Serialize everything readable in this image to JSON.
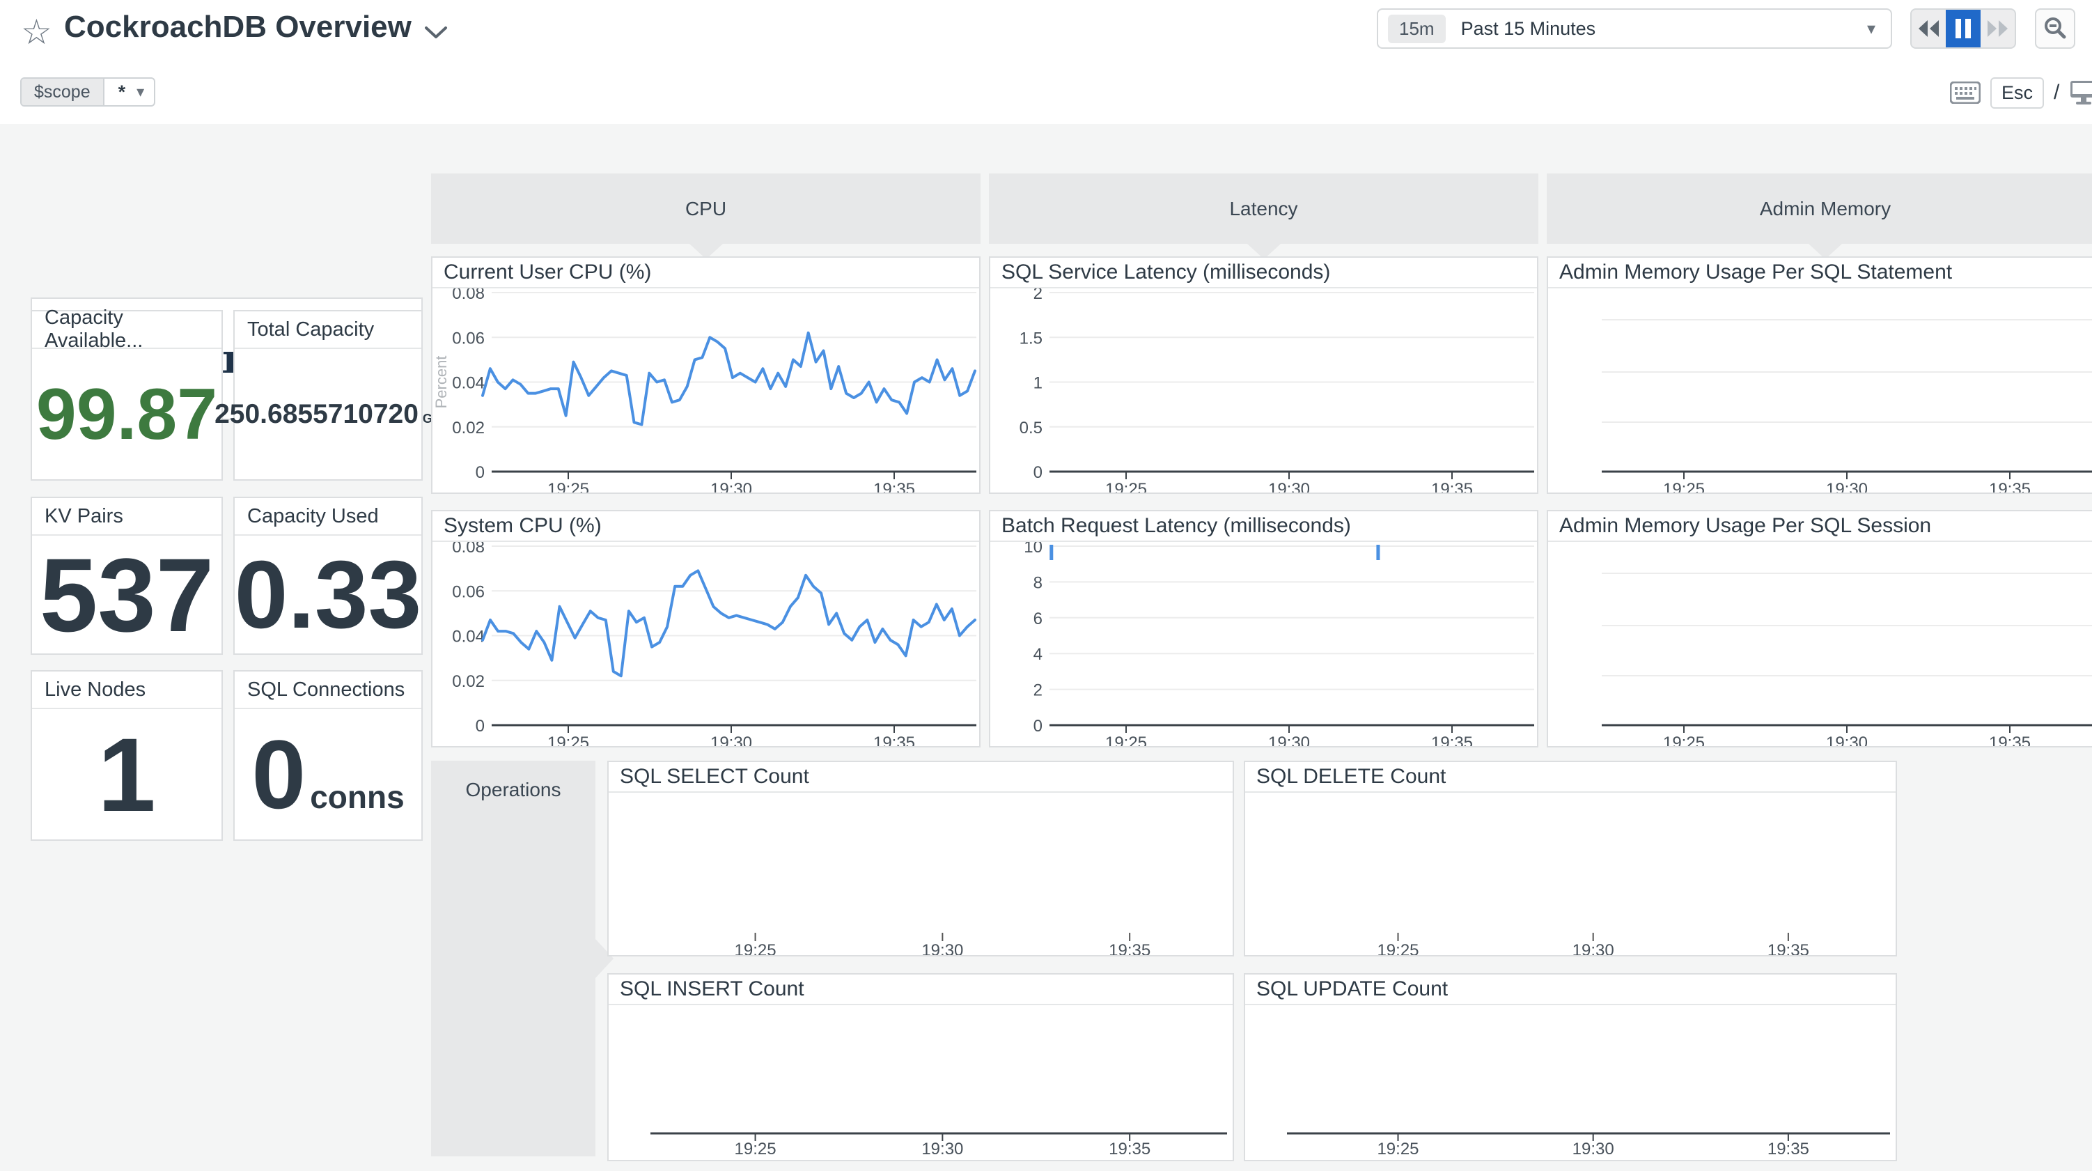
{
  "header": {
    "title": "CockroachDB Overview",
    "scope": {
      "label": "$scope",
      "value": "*"
    },
    "time_picker": {
      "badge": "15m",
      "label": "Past 15 Minutes"
    },
    "controls": {
      "esc_label": "Esc",
      "slash": "/"
    }
  },
  "logo": {
    "brand": "Cockroach",
    "suffix": "DB"
  },
  "stat_cards": [
    {
      "title": "Capacity Available...",
      "value": "99.87"
    },
    {
      "title": "Total Capacity",
      "value": "250.6855710720",
      "unit": "GB"
    },
    {
      "title": "KV Pairs",
      "value": "537"
    },
    {
      "title": "Capacity Used",
      "value": "0.33"
    },
    {
      "title": "Live Nodes",
      "value": "1"
    },
    {
      "title": "SQL Connections",
      "value": "0",
      "unit": "conns"
    }
  ],
  "groups": {
    "cpu": "CPU",
    "latency": "Latency",
    "admin_memory": "Admin Memory",
    "operations": "Operations"
  },
  "colors": {
    "line_blue": "#4a90e2",
    "green": "#3d7a3f",
    "pause_active": "#2069c9"
  },
  "chart_data": [
    {
      "id": "current-user-cpu",
      "type": "line",
      "kind": "grouped",
      "title": "Current User CPU (%)",
      "ylabel": "Percent",
      "ylim": [
        0,
        0.08
      ],
      "y_ticks": [
        "0",
        "0.02",
        "0.04",
        "0.06",
        "0.08"
      ],
      "x_ticks": [
        "19:25",
        "19:30",
        "19:35"
      ],
      "grid": true,
      "legend": "none",
      "values": [
        0.034,
        0.046,
        0.04,
        0.037,
        0.041,
        0.039,
        0.035,
        0.035,
        0.036,
        0.037,
        0.037,
        0.025,
        0.049,
        0.042,
        0.034,
        0.038,
        0.042,
        0.045,
        0.044,
        0.043,
        0.022,
        0.021,
        0.044,
        0.04,
        0.041,
        0.031,
        0.032,
        0.038,
        0.05,
        0.051,
        0.06,
        0.058,
        0.055,
        0.042,
        0.044,
        0.042,
        0.04,
        0.046,
        0.037,
        0.044,
        0.038,
        0.05,
        0.047,
        0.062,
        0.049,
        0.054,
        0.037,
        0.047,
        0.035,
        0.033,
        0.035,
        0.04,
        0.031,
        0.037,
        0.032,
        0.031,
        0.026,
        0.04,
        0.042,
        0.04,
        0.05,
        0.041,
        0.046,
        0.034,
        0.036,
        0.045
      ]
    },
    {
      "id": "system-cpu",
      "type": "line",
      "kind": "grouped",
      "title": "System CPU (%)",
      "ylim": [
        0,
        0.08
      ],
      "y_ticks": [
        "0",
        "0.02",
        "0.04",
        "0.06",
        "0.08"
      ],
      "x_ticks": [
        "19:25",
        "19:30",
        "19:35"
      ],
      "grid": true,
      "legend": "none",
      "values": [
        0.038,
        0.047,
        0.042,
        0.042,
        0.041,
        0.037,
        0.034,
        0.042,
        0.037,
        0.029,
        0.053,
        0.046,
        0.039,
        0.045,
        0.051,
        0.048,
        0.047,
        0.024,
        0.022,
        0.051,
        0.046,
        0.048,
        0.035,
        0.037,
        0.044,
        0.062,
        0.062,
        0.067,
        0.069,
        0.061,
        0.053,
        0.05,
        0.048,
        0.049,
        0.048,
        0.047,
        0.046,
        0.045,
        0.043,
        0.046,
        0.053,
        0.057,
        0.067,
        0.062,
        0.059,
        0.045,
        0.05,
        0.041,
        0.038,
        0.044,
        0.047,
        0.037,
        0.043,
        0.038,
        0.036,
        0.031,
        0.047,
        0.044,
        0.046,
        0.054,
        0.047,
        0.052,
        0.04,
        0.044,
        0.047
      ]
    },
    {
      "id": "sql-service-latency",
      "type": "line",
      "kind": "grouped",
      "title": "SQL Service Latency (milliseconds)",
      "ylim": [
        0,
        2
      ],
      "y_ticks": [
        "0",
        "0.5",
        "1",
        "1.5",
        "2"
      ],
      "x_ticks": [
        "19:25",
        "19:30",
        "19:35"
      ],
      "grid": true,
      "values": []
    },
    {
      "id": "batch-request-latency",
      "type": "line",
      "kind": "grouped",
      "title": "Batch Request Latency (milliseconds)",
      "ylim": [
        0,
        10
      ],
      "y_ticks": [
        "0",
        "2",
        "4",
        "6",
        "8",
        "10"
      ],
      "x_ticks": [
        "19:25",
        "19:30",
        "19:35"
      ],
      "grid": true,
      "values": [],
      "point_marks": [
        {
          "x_frac": 0.004,
          "value": 10
        },
        {
          "x_frac": 0.68,
          "value": 10
        }
      ]
    },
    {
      "id": "admin-memory-statement",
      "type": "line",
      "kind": "admin",
      "title": "Admin Memory Usage Per SQL Statement",
      "y_ticks": [],
      "x_ticks": [
        "19:25",
        "19:30",
        "19:35"
      ],
      "grid": true,
      "values": []
    },
    {
      "id": "admin-memory-session",
      "type": "line",
      "kind": "admin",
      "title": "Admin Memory Usage Per SQL Session",
      "y_ticks": [],
      "x_ticks": [
        "19:25",
        "19:30",
        "19:35"
      ],
      "grid": true,
      "values": []
    },
    {
      "id": "sql-select-count",
      "type": "line",
      "kind": "opsTick",
      "title": "SQL SELECT Count",
      "y_ticks": [],
      "x_ticks": [
        "19:25",
        "19:30",
        "19:35"
      ],
      "grid": false,
      "values": []
    },
    {
      "id": "sql-delete-count",
      "type": "line",
      "kind": "opsTick",
      "title": "SQL DELETE Count",
      "y_ticks": [],
      "x_ticks": [
        "19:25",
        "19:30",
        "19:35"
      ],
      "grid": false,
      "values": []
    },
    {
      "id": "sql-insert-count",
      "type": "line",
      "kind": "opsAxis",
      "title": "SQL INSERT Count",
      "y_ticks": [],
      "x_ticks": [
        "19:25",
        "19:30",
        "19:35"
      ],
      "grid": false,
      "values": []
    },
    {
      "id": "sql-update-count",
      "type": "line",
      "kind": "opsAxis",
      "title": "SQL UPDATE Count",
      "y_ticks": [],
      "x_ticks": [
        "19:25",
        "19:30",
        "19:35"
      ],
      "grid": false,
      "values": []
    }
  ]
}
